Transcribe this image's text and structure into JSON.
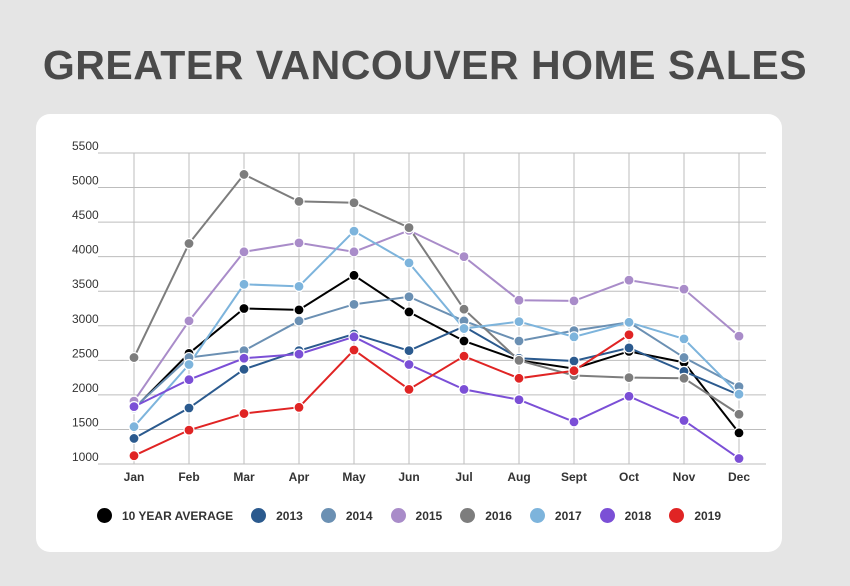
{
  "header": {
    "title": "GREATER VANCOUVER HOME SALES"
  },
  "chart_data": {
    "type": "line",
    "title": "GREATER VANCOUVER HOME SALES",
    "categories": [
      "Jan",
      "Feb",
      "Mar",
      "Apr",
      "May",
      "Jun",
      "Jul",
      "Aug",
      "Sept",
      "Oct",
      "Nov",
      "Dec"
    ],
    "ylim": [
      1000,
      5500
    ],
    "yticks": [
      1000,
      1500,
      2000,
      2500,
      3000,
      3500,
      4000,
      4500,
      5000,
      5500
    ],
    "grid": true,
    "legend_position": "bottom",
    "series": [
      {
        "name": "10 YEAR AVERAGE",
        "color": "#000000",
        "values": [
          1800,
          2600,
          3250,
          3230,
          3730,
          3200,
          2780,
          2500,
          2380,
          2630,
          2470,
          1450
        ]
      },
      {
        "name": "2013",
        "color": "#2b5a8e",
        "values": [
          1370,
          1810,
          2370,
          2640,
          2880,
          2640,
          2990,
          2530,
          2490,
          2680,
          2340,
          2000
        ]
      },
      {
        "name": "2014",
        "color": "#6b90b3",
        "values": [
          1810,
          2540,
          2640,
          3070,
          3310,
          3420,
          3070,
          2780,
          2930,
          3050,
          2540,
          2120
        ]
      },
      {
        "name": "2015",
        "color": "#a98cc9",
        "values": [
          1910,
          3070,
          4070,
          4200,
          4070,
          4380,
          4000,
          3370,
          3360,
          3660,
          3530,
          2850
        ]
      },
      {
        "name": "2016",
        "color": "#7d7d7d",
        "values": [
          2540,
          4190,
          5190,
          4800,
          4780,
          4420,
          3240,
          2500,
          2280,
          2250,
          2240,
          1720
        ]
      },
      {
        "name": "2017",
        "color": "#7db4dc",
        "values": [
          1540,
          2440,
          3600,
          3570,
          4370,
          3910,
          2960,
          3060,
          2840,
          3050,
          2810,
          2010
        ]
      },
      {
        "name": "2018",
        "color": "#7b4fd6",
        "values": [
          1830,
          2220,
          2530,
          2590,
          2840,
          2440,
          2080,
          1930,
          1610,
          1980,
          1630,
          1080
        ]
      },
      {
        "name": "2019",
        "color": "#e02424",
        "values": [
          1120,
          1490,
          1730,
          1820,
          2650,
          2080,
          2560,
          2240,
          2350,
          2870,
          null,
          null
        ]
      }
    ]
  }
}
